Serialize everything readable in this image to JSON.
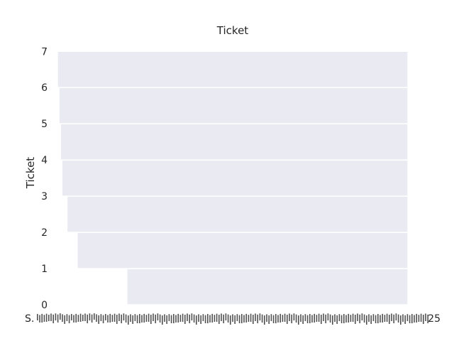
{
  "chart_data": {
    "type": "bar",
    "title": "Ticket",
    "ylabel": "Ticket",
    "xlabel": "",
    "ylim": [
      0,
      7.3
    ],
    "y_ticks": [
      "0",
      "1",
      "2",
      "3",
      "4",
      "5",
      "6",
      "7"
    ],
    "x_tick_first": "S.",
    "x_tick_last": "25",
    "grid": true,
    "legend": "none",
    "colors": {
      "bar_fill": "#eaeaf2",
      "bar_edge": "#ffffff",
      "text": "#262626",
      "background": "#ffffff"
    },
    "series": [
      {
        "values": [
          1,
          2,
          3,
          4,
          5,
          6,
          7
        ],
        "start_fraction": [
          0.1996,
          0.0582,
          0.0291,
          0.0146,
          0.0104,
          0.0062,
          0.0021
        ]
      }
    ]
  }
}
